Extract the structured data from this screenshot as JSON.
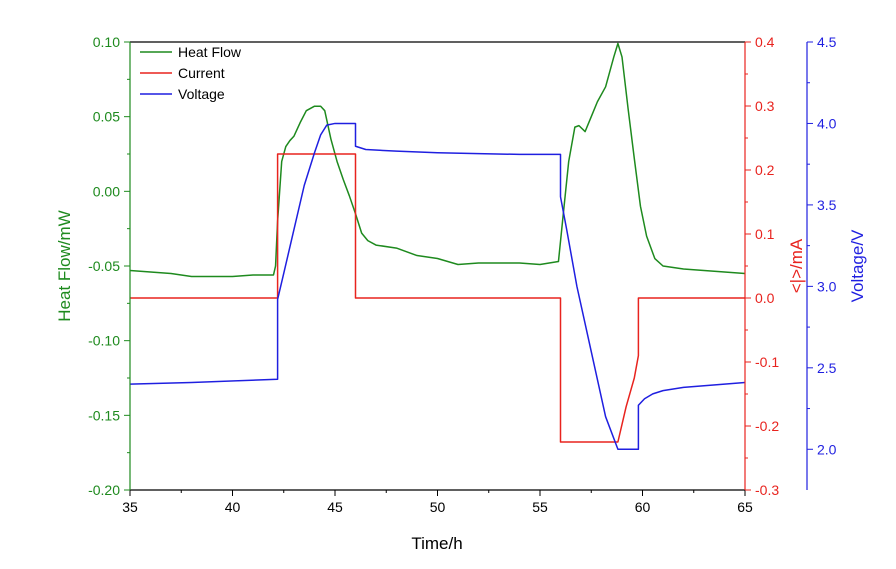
{
  "chart_data": {
    "type": "line",
    "title": "",
    "xlabel": "Time/h",
    "xlim": [
      35,
      65
    ],
    "x_ticks": [
      "35",
      "40",
      "45",
      "50",
      "55",
      "60",
      "65"
    ],
    "axes": [
      {
        "id": "left",
        "label": "Heat Flow/mW",
        "color": "#1e8a1e",
        "lim": [
          -0.2,
          0.1
        ],
        "ticks": [
          "0.10",
          "0.05",
          "0.00",
          "-0.05",
          "-0.10",
          "-0.15",
          "-0.20"
        ]
      },
      {
        "id": "right1",
        "label": "<|>/mA",
        "color": "#e8231e",
        "lim": [
          -0.3,
          0.4
        ],
        "ticks": [
          "0.4",
          "0.3",
          "0.2",
          "0.1",
          "0.0",
          "-0.1",
          "-0.2",
          "-0.3"
        ]
      },
      {
        "id": "right2",
        "label": "Voltage/V",
        "color": "#1f1fe0",
        "lim": [
          1.75,
          4.5
        ],
        "ticks": [
          "4.5",
          "4.0",
          "3.5",
          "3.0",
          "2.5",
          "2.0"
        ]
      }
    ],
    "legend": {
      "position": "top-left"
    },
    "series": [
      {
        "name": "Heat Flow",
        "axis": "left",
        "color": "#1e8a1e",
        "x": [
          35,
          36,
          37,
          38,
          39,
          40,
          41,
          42,
          42.1,
          42.2,
          42.4,
          42.6,
          42.8,
          43.0,
          43.3,
          43.6,
          44.0,
          44.3,
          44.5,
          44.8,
          45.1,
          45.4,
          45.7,
          46.0,
          46.3,
          46.6,
          47,
          48,
          49,
          50,
          51,
          52,
          53,
          54,
          55,
          55.9,
          56.1,
          56.4,
          56.7,
          56.9,
          57.2,
          57.5,
          57.8,
          58.2,
          58.6,
          58.8,
          59.0,
          59.3,
          59.6,
          59.9,
          60.2,
          60.6,
          61,
          62,
          63,
          64,
          65
        ],
        "y": [
          -0.053,
          -0.054,
          -0.055,
          -0.057,
          -0.057,
          -0.057,
          -0.056,
          -0.056,
          -0.05,
          -0.02,
          0.02,
          0.03,
          0.034,
          0.037,
          0.046,
          0.054,
          0.057,
          0.057,
          0.054,
          0.035,
          0.02,
          0.008,
          -0.003,
          -0.015,
          -0.028,
          -0.033,
          -0.036,
          -0.038,
          -0.043,
          -0.045,
          -0.049,
          -0.048,
          -0.048,
          -0.048,
          -0.049,
          -0.047,
          -0.02,
          0.02,
          0.043,
          0.044,
          0.04,
          0.05,
          0.06,
          0.07,
          0.09,
          0.099,
          0.09,
          0.055,
          0.022,
          -0.01,
          -0.03,
          -0.045,
          -0.05,
          -0.052,
          -0.053,
          -0.054,
          -0.055
        ]
      },
      {
        "name": "Current",
        "axis": "right1",
        "color": "#e8231e",
        "x": [
          35,
          42.2,
          42.2,
          46.0,
          46.0,
          56.0,
          56.0,
          58.8,
          59.2,
          59.6,
          59.8,
          59.8,
          65
        ],
        "y": [
          0,
          0,
          0.225,
          0.225,
          0,
          0,
          -0.225,
          -0.225,
          -0.17,
          -0.125,
          -0.09,
          0,
          0
        ]
      },
      {
        "name": "Voltage",
        "axis": "right2",
        "color": "#1f1fe0",
        "x": [
          35,
          38,
          42.2,
          42.2,
          42.5,
          43.0,
          43.5,
          44.0,
          44.3,
          44.6,
          45.0,
          45.5,
          46.0,
          46.0,
          46.5,
          48,
          50,
          52,
          54,
          56.0,
          56.0,
          56.3,
          56.8,
          57.5,
          58.2,
          58.8,
          59.2,
          59.8,
          59.8,
          60.1,
          60.5,
          61,
          62,
          63,
          64,
          65
        ],
        "y": [
          2.4,
          2.41,
          2.43,
          2.92,
          3.08,
          3.35,
          3.62,
          3.82,
          3.93,
          3.99,
          4.0,
          4.0,
          4.0,
          3.86,
          3.84,
          3.83,
          3.82,
          3.815,
          3.81,
          3.81,
          3.55,
          3.35,
          3.0,
          2.6,
          2.2,
          2.0,
          2.0,
          2.0,
          2.27,
          2.31,
          2.34,
          2.36,
          2.38,
          2.39,
          2.4,
          2.41
        ]
      }
    ]
  }
}
